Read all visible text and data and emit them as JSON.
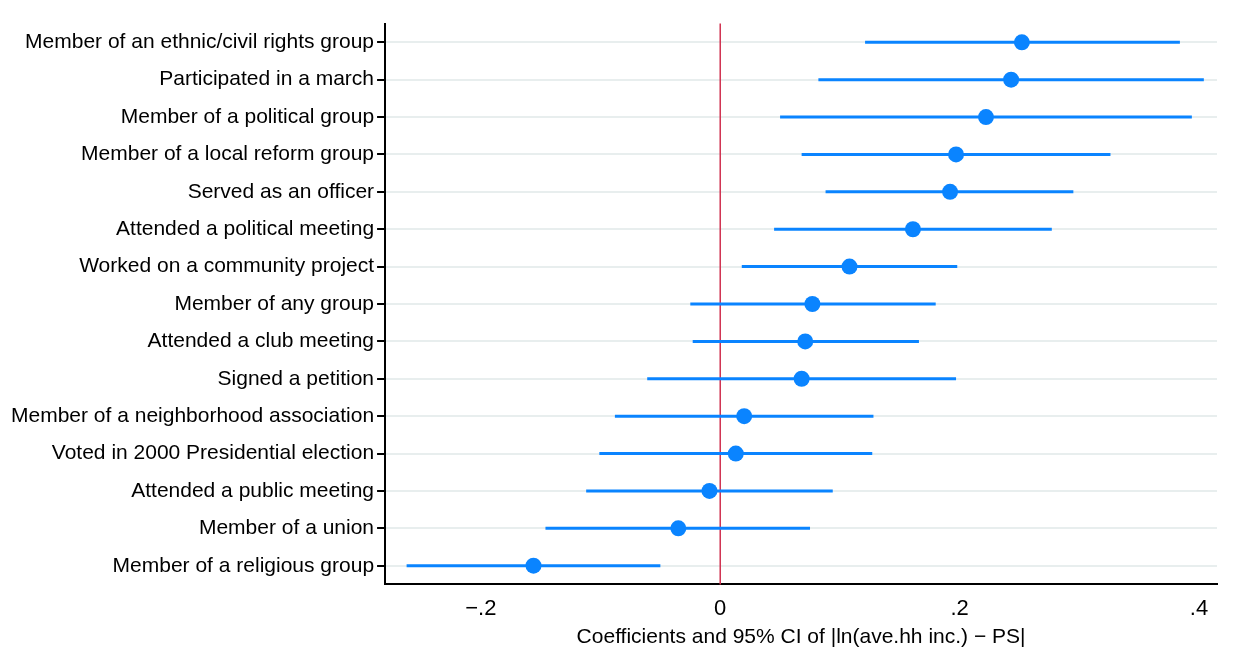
{
  "chart_data": {
    "type": "scatter",
    "orientation": "horizontal",
    "xlabel": "Coefficients and 95% CI of |ln(ave.hh inc.) − PS|",
    "categories": [
      "Member of an ethnic/civil rights group",
      "Participated in a march",
      "Member of a political group",
      "Member of a local reform group",
      "Served as an officer",
      "Attended a political meeting",
      "Worked on a community project",
      "Member of any group",
      "Attended a club meeting",
      "Signed a petition",
      "Member of a neighborhood association",
      "Voted in 2000 Presidential election",
      "Attended a public meeting",
      "Member of a union",
      "Member of a religious group"
    ],
    "values": [
      0.252,
      0.243,
      0.222,
      0.197,
      0.192,
      0.161,
      0.108,
      0.077,
      0.071,
      0.068,
      0.02,
      0.013,
      -0.009,
      -0.035,
      -0.156
    ],
    "errors": [
      [
        0.121,
        0.384
      ],
      [
        0.082,
        0.404
      ],
      [
        0.05,
        0.394
      ],
      [
        0.068,
        0.326
      ],
      [
        0.088,
        0.295
      ],
      [
        0.045,
        0.277
      ],
      [
        0.018,
        0.198
      ],
      [
        -0.025,
        0.18
      ],
      [
        -0.023,
        0.166
      ],
      [
        -0.061,
        0.197
      ],
      [
        -0.088,
        0.128
      ],
      [
        -0.101,
        0.127
      ],
      [
        -0.112,
        0.094
      ],
      [
        -0.146,
        0.075
      ],
      [
        -0.262,
        -0.05
      ]
    ],
    "color": "#0a84ff",
    "marker": "circle",
    "xlim": [
      -0.28,
      0.415
    ],
    "xticks": [
      {
        "value": -0.2,
        "label": "−.2"
      },
      {
        "value": 0,
        "label": "0"
      },
      {
        "value": 0.2,
        "label": ".2"
      },
      {
        "value": 0.4,
        "label": ".4"
      }
    ],
    "ref_lines": [
      {
        "axis": "x",
        "value": 0,
        "color": "#d0314f"
      }
    ],
    "grid": "y",
    "legend": false
  }
}
